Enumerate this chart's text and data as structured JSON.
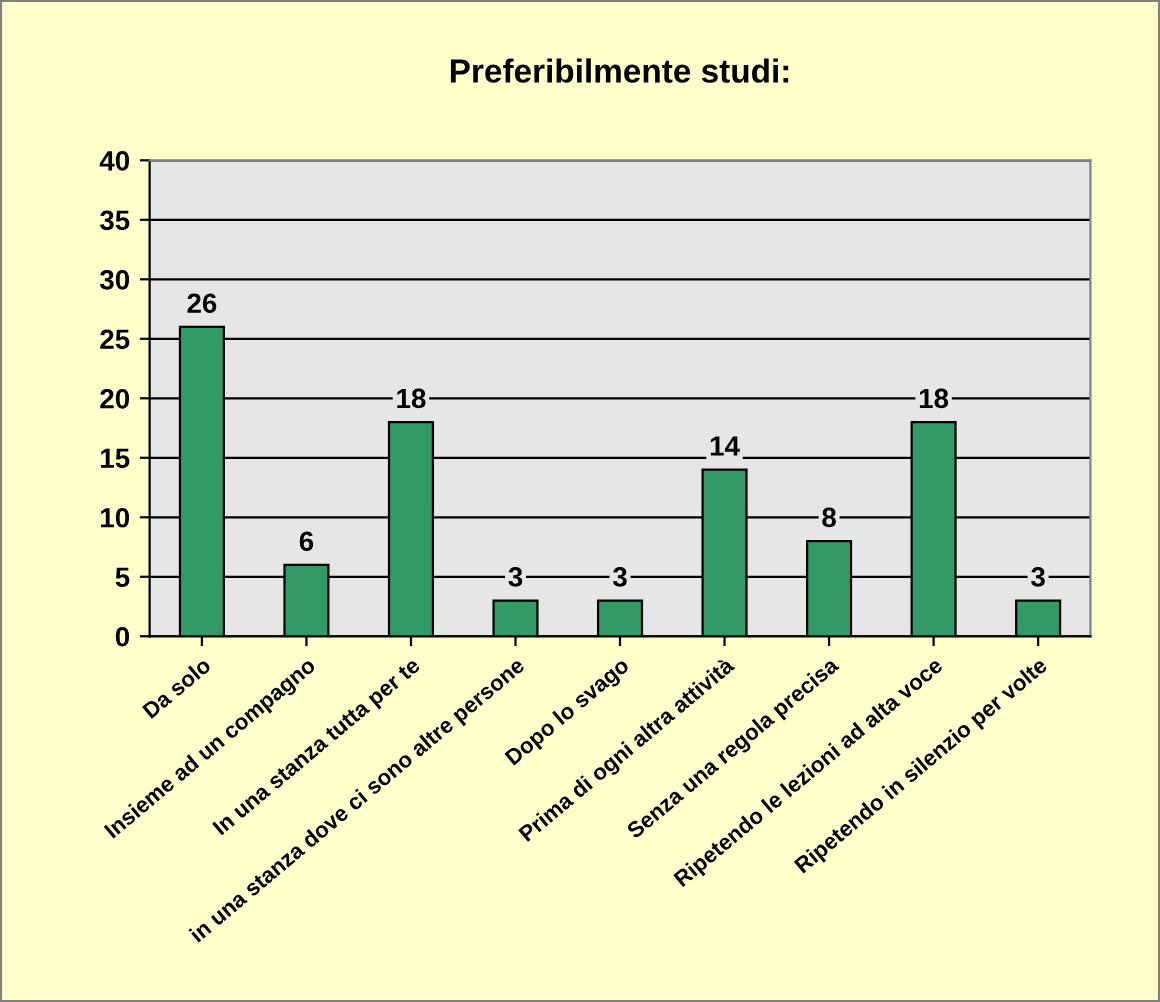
{
  "chart_data": {
    "type": "bar",
    "title": "Preferibilmente studi:",
    "categories": [
      "Da solo",
      "Insieme ad un compagno",
      "In una stanza tutta per te",
      "in una stanza dove ci sono altre persone",
      "Dopo lo svago",
      "Prima di ogni altra attività",
      "Senza una regola precisa",
      "Ripetendo le lezioni ad alta voce",
      "Ripetendo in silenzio per volte"
    ],
    "values": [
      26,
      6,
      18,
      3,
      3,
      14,
      8,
      18,
      3
    ],
    "color": "#339966",
    "ylim": [
      0,
      40
    ],
    "yticks": [
      0,
      5,
      10,
      15,
      20,
      25,
      30,
      35,
      40
    ],
    "grid": "y",
    "data_labels": true
  }
}
